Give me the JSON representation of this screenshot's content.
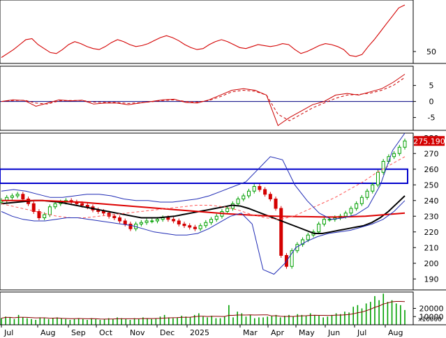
{
  "chart_data": [
    {
      "type": "line",
      "panel": "rsi",
      "series": [
        {
          "color": "#d40000",
          "values": [
            44,
            48,
            52,
            57,
            62,
            63,
            57,
            53,
            49,
            48,
            52,
            57,
            60,
            58,
            55,
            53,
            52,
            55,
            59,
            62,
            60,
            57,
            55,
            56,
            58,
            61,
            64,
            66,
            64,
            61,
            57,
            54,
            52,
            53,
            57,
            60,
            62,
            60,
            57,
            54,
            53,
            55,
            57,
            56,
            55,
            56,
            58,
            57,
            52,
            48,
            50,
            53,
            56,
            58,
            57,
            55,
            52,
            46,
            45,
            47,
            55,
            62,
            70,
            78,
            86,
            94,
            97
          ]
        }
      ],
      "ylim": [
        38,
        102
      ],
      "ticks": [
        {
          "value": 50,
          "label": "50"
        }
      ]
    },
    {
      "type": "line",
      "panel": "macd",
      "series": [
        {
          "color": "#cc0000",
          "style": "solid",
          "values": [
            0,
            0.5,
            0.3,
            -1.5,
            -0.5,
            0.5,
            0.2,
            0.4,
            -0.8,
            -0.5,
            -0.5,
            -1,
            -0.5,
            0,
            0.5,
            0.7,
            -0.3,
            -0.5,
            0.5,
            2,
            3.5,
            4,
            3.5,
            2,
            -7.5,
            -5,
            -3,
            -1,
            0,
            2,
            2.5,
            2,
            3,
            4,
            6,
            8.5
          ]
        },
        {
          "color": "#cc0000",
          "style": "dashed",
          "values": [
            0,
            0.3,
            0.4,
            -0.5,
            -0.8,
            0.2,
            0.3,
            0.3,
            -0.2,
            -0.3,
            -0.3,
            -0.6,
            -0.4,
            -0.1,
            0.3,
            0.5,
            0,
            -0.2,
            0.3,
            1.5,
            3,
            3.5,
            3.2,
            2,
            -4,
            -6,
            -4,
            -2,
            -0.5,
            1,
            2,
            2.2,
            2.6,
            3.5,
            5,
            7.5
          ]
        }
      ],
      "ylim": [
        -9,
        11
      ],
      "ticks": [
        {
          "value": 5,
          "label": "5"
        },
        {
          "value": 0,
          "label": "0"
        },
        {
          "value": -5,
          "label": "-5"
        }
      ]
    },
    {
      "type": "candlestick",
      "panel": "price",
      "close": [
        240,
        242,
        243,
        244,
        241,
        238,
        233,
        229,
        231,
        236,
        238,
        239,
        240,
        239,
        238,
        237,
        236,
        234,
        233,
        232,
        230,
        229,
        227,
        225,
        222,
        225,
        226,
        227,
        227,
        228,
        229,
        228,
        227,
        225,
        224,
        223,
        222,
        224,
        226,
        228,
        230,
        233,
        235,
        238,
        241,
        243,
        246,
        249,
        247,
        244,
        241,
        235,
        205,
        198,
        208,
        212,
        215,
        218,
        220,
        225,
        228,
        228,
        229,
        230,
        232,
        235,
        238,
        242,
        246,
        250,
        258,
        265,
        268,
        270,
        274,
        278
      ],
      "overlays": [
        {
          "name": "",
          "color": "#000000",
          "values": [
            238,
            238.5,
            239,
            239.5,
            240,
            240,
            239.5,
            239,
            238,
            237,
            236,
            235,
            234,
            233,
            232,
            231,
            230,
            229,
            229,
            229,
            229.5,
            230,
            231,
            232,
            233,
            234,
            235,
            236,
            237,
            236.5,
            235,
            233,
            231,
            229,
            227,
            225,
            223,
            221,
            219,
            219,
            220,
            221,
            222,
            223,
            224,
            226,
            229,
            233,
            238,
            243
          ]
        },
        {
          "name": "",
          "color": "#dd0000",
          "values": [
            240,
            240,
            240,
            240,
            240,
            239.8,
            239.5,
            239.2,
            239,
            238.5,
            238,
            237.5,
            237,
            236.5,
            236,
            235.5,
            235,
            234.5,
            234,
            233.5,
            233,
            232.5,
            232,
            231.6,
            231.2,
            230.8,
            230.5,
            230.2,
            230,
            229.9,
            229.8,
            229.7,
            229.6,
            229.5,
            229.5,
            229.6,
            229.8,
            230,
            230.5,
            231,
            231.5,
            232
          ]
        },
        {
          "name": "",
          "color": "#ff5555",
          "style": "dashed",
          "values": [
            238,
            236,
            234,
            232,
            230,
            229,
            229,
            230,
            231,
            232,
            233,
            234,
            235,
            236,
            237,
            237,
            236,
            234,
            231,
            229,
            228,
            230,
            234,
            238,
            242,
            247,
            252,
            258,
            263,
            268
          ]
        },
        {
          "name": "",
          "color": "#1f2bb5",
          "values": [
            246,
            247,
            246,
            244,
            242,
            242,
            243,
            244,
            244,
            243,
            241,
            240,
            240,
            239,
            239,
            240,
            241,
            243,
            246,
            249,
            252,
            260,
            268,
            266,
            250,
            240,
            232,
            228,
            229,
            231,
            236,
            250,
            272,
            283
          ]
        },
        {
          "name": "",
          "color": "#1f2bb5",
          "values": [
            233,
            230,
            228,
            227,
            227,
            228,
            229,
            229,
            228,
            227,
            226,
            225,
            224,
            222,
            220,
            219,
            218,
            218,
            219,
            222,
            226,
            230,
            232,
            225,
            196,
            193,
            200,
            210,
            214,
            217,
            219,
            220,
            221,
            223,
            225,
            228,
            233,
            240
          ]
        }
      ],
      "zone": {
        "from": 251,
        "to": 260,
        "color": "#0000cc"
      },
      "last_price": "275.190",
      "ylim": [
        183,
        283
      ],
      "ticks": [
        {
          "value": 280,
          "label": "280"
        },
        {
          "value": 270,
          "label": "270"
        },
        {
          "value": 260,
          "label": "260"
        },
        {
          "value": 250,
          "label": "250"
        },
        {
          "value": 240,
          "label": "240"
        },
        {
          "value": 230,
          "label": "230"
        },
        {
          "value": 220,
          "label": "220"
        },
        {
          "value": 210,
          "label": "210"
        },
        {
          "value": 200,
          "label": "200"
        },
        {
          "value": 190,
          "label": "190"
        }
      ]
    },
    {
      "type": "bar",
      "panel": "volume",
      "unit_label": "x10000",
      "values": [
        8,
        10,
        9,
        7,
        12,
        9,
        8,
        7,
        6,
        9,
        8,
        7,
        8,
        9,
        8,
        7,
        6,
        7,
        8,
        7,
        6,
        8,
        7,
        6,
        7,
        8,
        7,
        9,
        8,
        7,
        6,
        8,
        7,
        9,
        8,
        7,
        8,
        10,
        12,
        9,
        8,
        9,
        11,
        10,
        9,
        12,
        14,
        10,
        9,
        11,
        8,
        8,
        10,
        24,
        9,
        16,
        14,
        10,
        12,
        8,
        9,
        9,
        10,
        11,
        12,
        9,
        11,
        12,
        10,
        13,
        12,
        11,
        14,
        12,
        11,
        9,
        10,
        12,
        14,
        13,
        16,
        15,
        22,
        24,
        20,
        26,
        28,
        35,
        30,
        38,
        28,
        30,
        26,
        24,
        18
      ],
      "ylim": [
        0,
        40000
      ],
      "ticks": [
        {
          "value": 20000,
          "label": "20000"
        },
        {
          "value": 10000,
          "label": "10000"
        }
      ]
    }
  ],
  "x_axis": {
    "labels": [
      "Jul",
      "Aug",
      "Sep",
      "Oct",
      "Nov",
      "Dec",
      "2025",
      "Mar",
      "Apr",
      "May",
      "Jun",
      "Jul",
      "Aug"
    ]
  },
  "colors": {
    "up": "#00a000",
    "down": "#d40000",
    "panel_border": "#000000",
    "zero_line": "#000080"
  }
}
